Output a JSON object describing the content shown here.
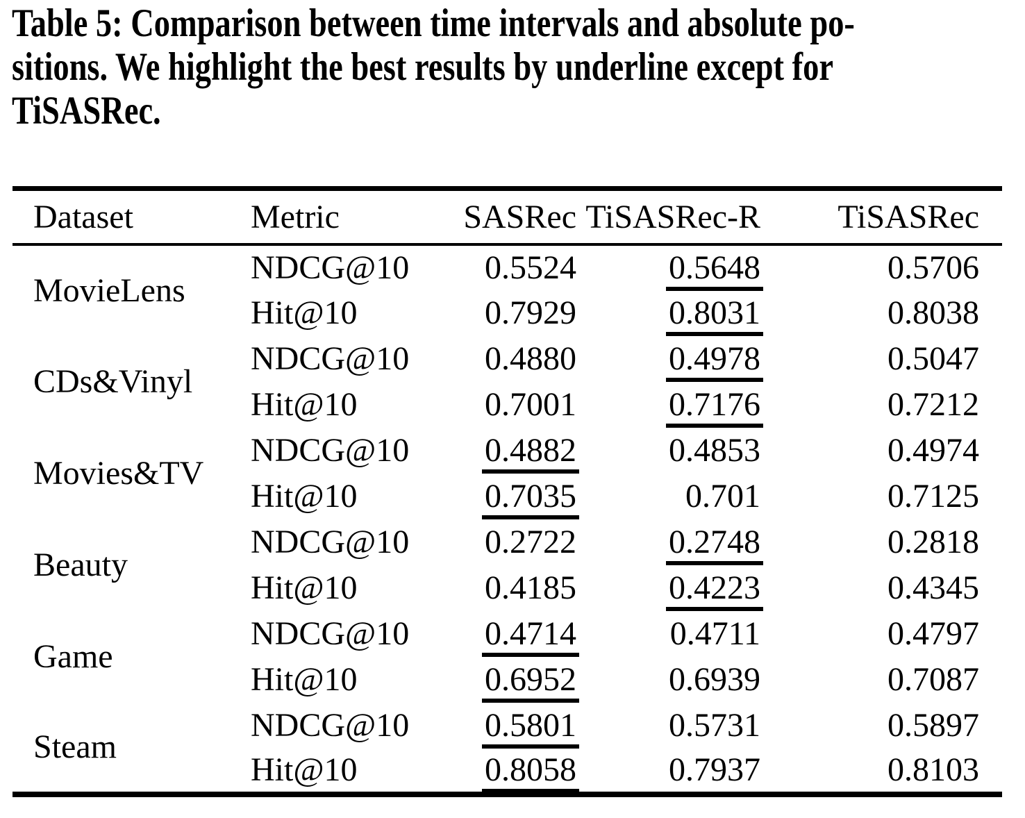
{
  "caption": {
    "lines": [
      "Table 5: Comparison between time intervals and absolute po-",
      "sitions. We highlight the best results by underline except for",
      "TiSASRec."
    ]
  },
  "table": {
    "columns": [
      "Dataset",
      "Metric",
      "SASRec",
      "TiSASRec-R",
      "TiSASRec"
    ],
    "groups": [
      {
        "dataset": "MovieLens",
        "rows": [
          {
            "metric": "NDCG@10",
            "values": [
              {
                "text": "0.5524",
                "underline": false
              },
              {
                "text": "0.5648",
                "underline": true
              },
              {
                "text": "0.5706",
                "underline": false
              }
            ]
          },
          {
            "metric": "Hit@10",
            "values": [
              {
                "text": "0.7929",
                "underline": false
              },
              {
                "text": "0.8031",
                "underline": true
              },
              {
                "text": "0.8038",
                "underline": false
              }
            ]
          }
        ]
      },
      {
        "dataset": "CDs&Vinyl",
        "rows": [
          {
            "metric": "NDCG@10",
            "values": [
              {
                "text": "0.4880",
                "underline": false
              },
              {
                "text": "0.4978",
                "underline": true
              },
              {
                "text": "0.5047",
                "underline": false
              }
            ]
          },
          {
            "metric": "Hit@10",
            "values": [
              {
                "text": "0.7001",
                "underline": false
              },
              {
                "text": "0.7176",
                "underline": true
              },
              {
                "text": "0.7212",
                "underline": false
              }
            ]
          }
        ]
      },
      {
        "dataset": "Movies&TV",
        "rows": [
          {
            "metric": "NDCG@10",
            "values": [
              {
                "text": "0.4882",
                "underline": true
              },
              {
                "text": "0.4853",
                "underline": false
              },
              {
                "text": "0.4974",
                "underline": false
              }
            ]
          },
          {
            "metric": "Hit@10",
            "values": [
              {
                "text": "0.7035",
                "underline": true
              },
              {
                "text": "0.701",
                "underline": false
              },
              {
                "text": "0.7125",
                "underline": false
              }
            ]
          }
        ]
      },
      {
        "dataset": "Beauty",
        "rows": [
          {
            "metric": "NDCG@10",
            "values": [
              {
                "text": "0.2722",
                "underline": false
              },
              {
                "text": "0.2748",
                "underline": true
              },
              {
                "text": "0.2818",
                "underline": false
              }
            ]
          },
          {
            "metric": "Hit@10",
            "values": [
              {
                "text": "0.4185",
                "underline": false
              },
              {
                "text": "0.4223",
                "underline": true
              },
              {
                "text": "0.4345",
                "underline": false
              }
            ]
          }
        ]
      },
      {
        "dataset": "Game",
        "rows": [
          {
            "metric": "NDCG@10",
            "values": [
              {
                "text": "0.4714",
                "underline": true
              },
              {
                "text": "0.4711",
                "underline": false
              },
              {
                "text": "0.4797",
                "underline": false
              }
            ]
          },
          {
            "metric": "Hit@10",
            "values": [
              {
                "text": "0.6952",
                "underline": true
              },
              {
                "text": "0.6939",
                "underline": false
              },
              {
                "text": "0.7087",
                "underline": false
              }
            ]
          }
        ]
      },
      {
        "dataset": "Steam",
        "rows": [
          {
            "metric": "NDCG@10",
            "values": [
              {
                "text": "0.5801",
                "underline": true
              },
              {
                "text": "0.5731",
                "underline": false
              },
              {
                "text": "0.5897",
                "underline": false
              }
            ]
          },
          {
            "metric": "Hit@10",
            "values": [
              {
                "text": "0.8058",
                "underline": true
              },
              {
                "text": "0.7937",
                "underline": false
              },
              {
                "text": "0.8103",
                "underline": false
              }
            ]
          }
        ]
      }
    ]
  },
  "colors": {
    "text": "#000000",
    "background": "#ffffff",
    "rule": "#000000"
  }
}
